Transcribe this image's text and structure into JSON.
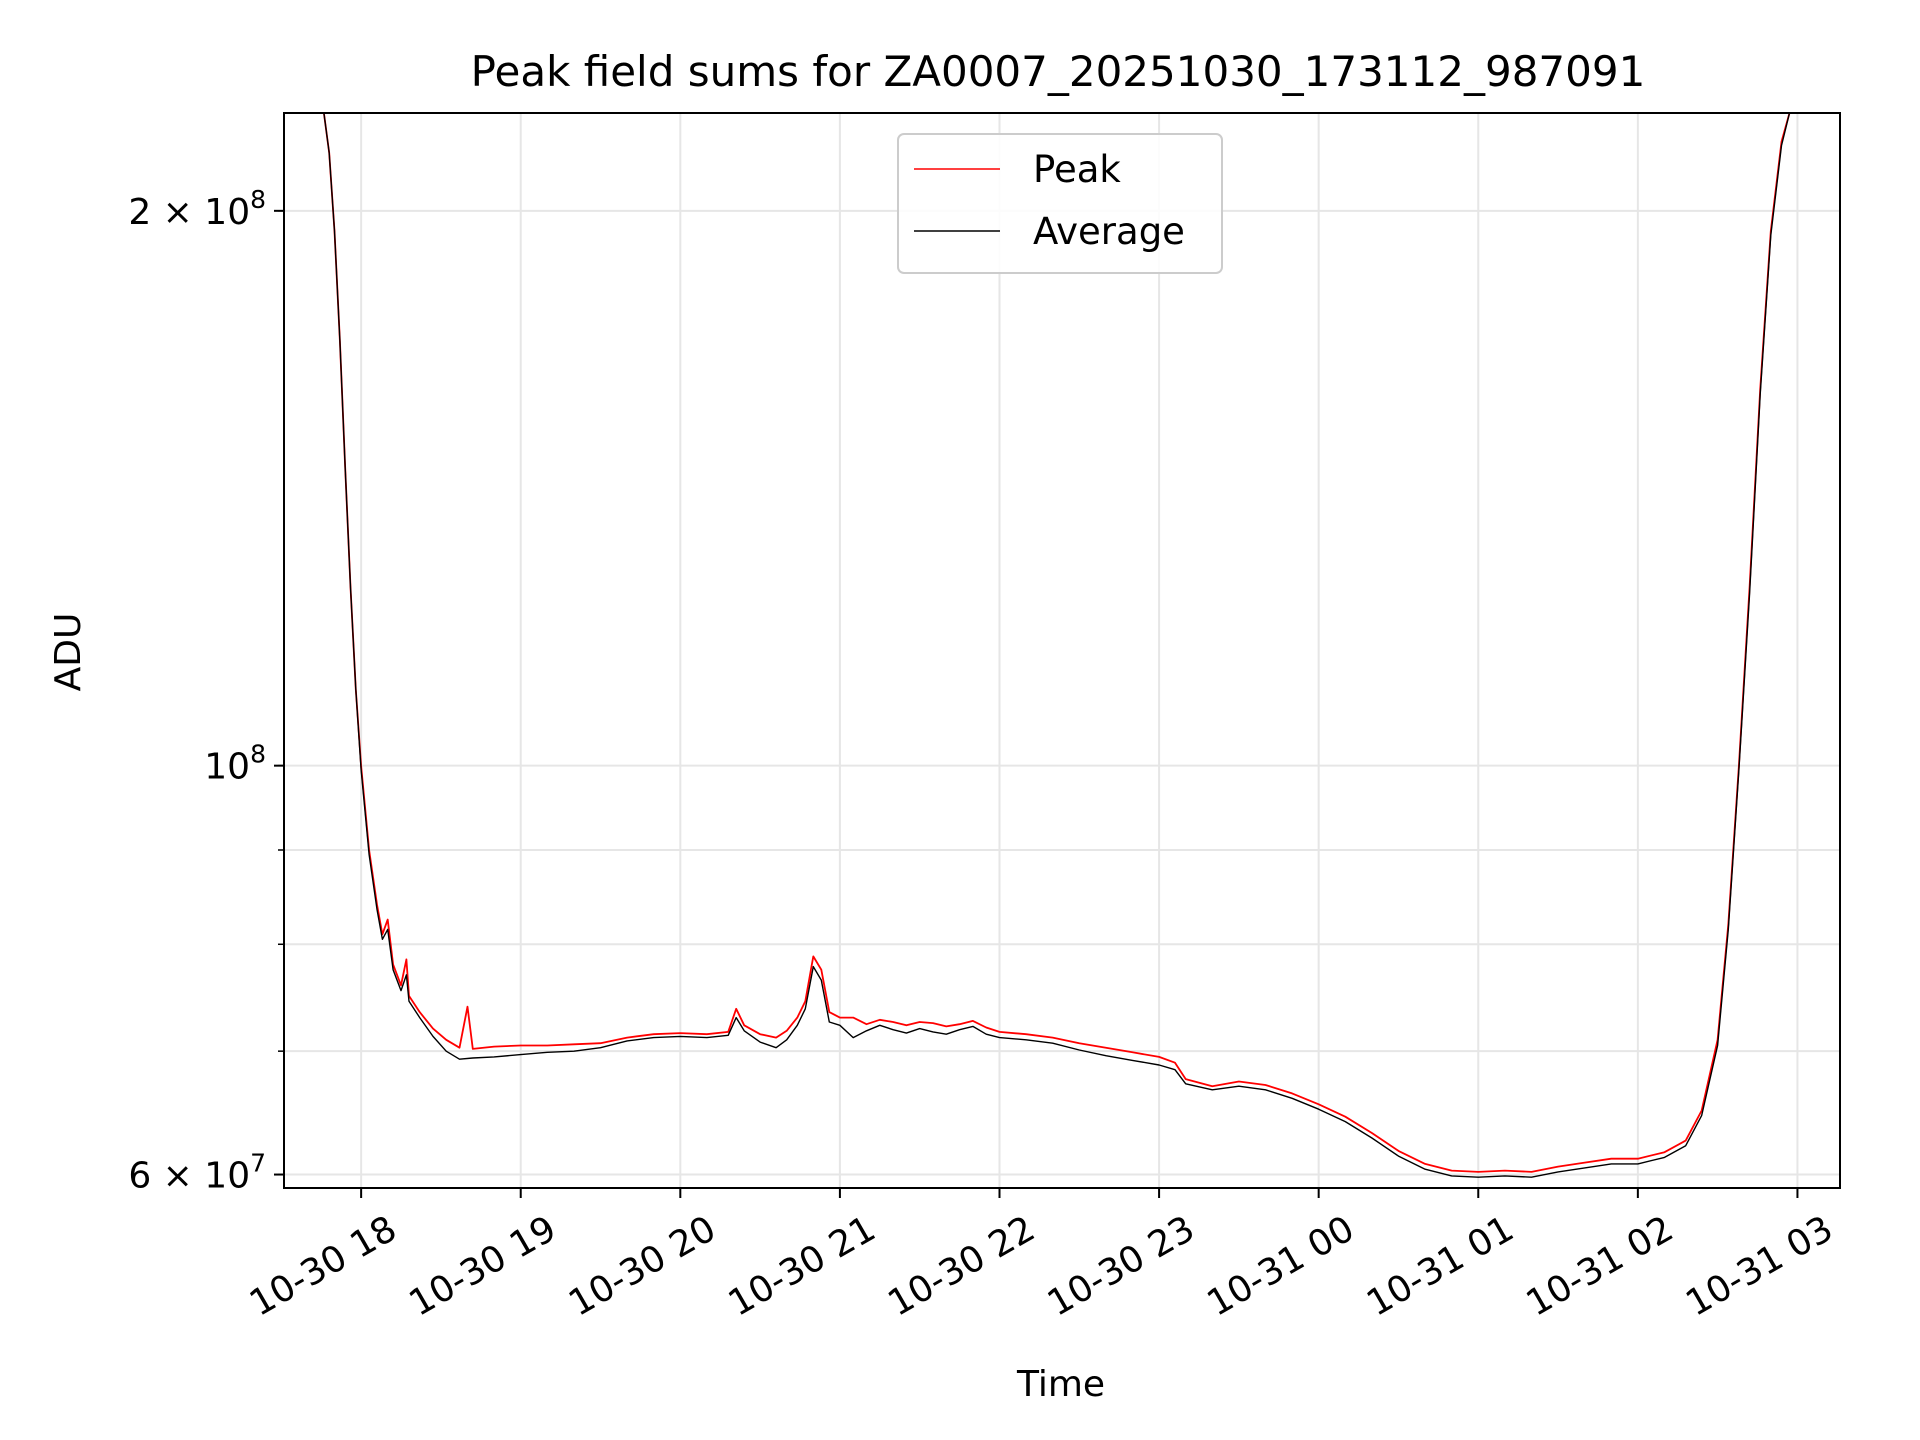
{
  "chart_data": {
    "type": "line",
    "title": "Peak field sums for ZA0007_20251030_173112_987091",
    "xlabel": "Time",
    "ylabel": "ADU",
    "yscale": "log",
    "grid": true,
    "legend_position": "top-center",
    "xlim": [
      "2025-10-30 17:31",
      "2025-10-31 03:16"
    ],
    "ylim": [
      59000000,
      226000000
    ],
    "x_ticks": [
      {
        "value": "2025-10-30 18:00",
        "label": "10-30 18"
      },
      {
        "value": "2025-10-30 19:00",
        "label": "10-30 19"
      },
      {
        "value": "2025-10-30 20:00",
        "label": "10-30 20"
      },
      {
        "value": "2025-10-30 21:00",
        "label": "10-30 21"
      },
      {
        "value": "2025-10-30 22:00",
        "label": "10-30 22"
      },
      {
        "value": "2025-10-30 23:00",
        "label": "10-30 23"
      },
      {
        "value": "2025-10-31 00:00",
        "label": "10-31 00"
      },
      {
        "value": "2025-10-31 01:00",
        "label": "10-31 01"
      },
      {
        "value": "2025-10-31 02:00",
        "label": "10-31 02"
      },
      {
        "value": "2025-10-31 03:00",
        "label": "10-31 03"
      }
    ],
    "y_major_ticks": [
      {
        "value": 60000000,
        "base": "6 × 10",
        "exp": "7"
      },
      {
        "value": 100000000,
        "base": "10",
        "exp": "8"
      },
      {
        "value": 200000000,
        "base": "2 × 10",
        "exp": "8"
      }
    ],
    "y_minor_ticks": [
      60000000,
      70000000,
      80000000,
      90000000,
      100000000,
      200000000
    ],
    "series": [
      {
        "name": "Peak",
        "color": "#ff0000",
        "points": [
          [
            "2025-10-30 17:46",
            226000000
          ],
          [
            "2025-10-30 17:48",
            215000000
          ],
          [
            "2025-10-30 17:50",
            195000000
          ],
          [
            "2025-10-30 17:52",
            170000000
          ],
          [
            "2025-10-30 17:54",
            145000000
          ],
          [
            "2025-10-30 17:56",
            125000000
          ],
          [
            "2025-10-30 17:58",
            110000000
          ],
          [
            "2025-10-30 18:00",
            100000000
          ],
          [
            "2025-10-30 18:03",
            90000000
          ],
          [
            "2025-10-30 18:06",
            84000000
          ],
          [
            "2025-10-30 18:08",
            81000000
          ],
          [
            "2025-10-30 18:10",
            82500000
          ],
          [
            "2025-10-30 18:12",
            78000000
          ],
          [
            "2025-10-30 18:15",
            76000000
          ],
          [
            "2025-10-30 18:17",
            78500000
          ],
          [
            "2025-10-30 18:18",
            75000000
          ],
          [
            "2025-10-30 18:22",
            73500000
          ],
          [
            "2025-10-30 18:27",
            72000000
          ],
          [
            "2025-10-30 18:32",
            71000000
          ],
          [
            "2025-10-30 18:37",
            70300000
          ],
          [
            "2025-10-30 18:40",
            74000000
          ],
          [
            "2025-10-30 18:42",
            70200000
          ],
          [
            "2025-10-30 18:50",
            70400000
          ],
          [
            "2025-10-30 19:00",
            70500000
          ],
          [
            "2025-10-30 19:10",
            70500000
          ],
          [
            "2025-10-30 19:20",
            70600000
          ],
          [
            "2025-10-30 19:30",
            70700000
          ],
          [
            "2025-10-30 19:40",
            71200000
          ],
          [
            "2025-10-30 19:50",
            71500000
          ],
          [
            "2025-10-30 20:00",
            71600000
          ],
          [
            "2025-10-30 20:10",
            71500000
          ],
          [
            "2025-10-30 20:18",
            71700000
          ],
          [
            "2025-10-30 20:21",
            73800000
          ],
          [
            "2025-10-30 20:24",
            72300000
          ],
          [
            "2025-10-30 20:30",
            71500000
          ],
          [
            "2025-10-30 20:36",
            71200000
          ],
          [
            "2025-10-30 20:40",
            71800000
          ],
          [
            "2025-10-30 20:44",
            73000000
          ],
          [
            "2025-10-30 20:47",
            74500000
          ],
          [
            "2025-10-30 20:50",
            78800000
          ],
          [
            "2025-10-30 20:53",
            77500000
          ],
          [
            "2025-10-30 20:56",
            73500000
          ],
          [
            "2025-10-30 21:00",
            73000000
          ],
          [
            "2025-10-30 21:05",
            73000000
          ],
          [
            "2025-10-30 21:10",
            72400000
          ],
          [
            "2025-10-30 21:15",
            72800000
          ],
          [
            "2025-10-30 21:20",
            72600000
          ],
          [
            "2025-10-30 21:25",
            72300000
          ],
          [
            "2025-10-30 21:30",
            72600000
          ],
          [
            "2025-10-30 21:35",
            72500000
          ],
          [
            "2025-10-30 21:40",
            72200000
          ],
          [
            "2025-10-30 21:45",
            72400000
          ],
          [
            "2025-10-30 21:50",
            72700000
          ],
          [
            "2025-10-30 21:55",
            72100000
          ],
          [
            "2025-10-30 22:00",
            71700000
          ],
          [
            "2025-10-30 22:10",
            71500000
          ],
          [
            "2025-10-30 22:20",
            71200000
          ],
          [
            "2025-10-30 22:30",
            70700000
          ],
          [
            "2025-10-30 22:40",
            70300000
          ],
          [
            "2025-10-30 22:50",
            69900000
          ],
          [
            "2025-10-30 23:00",
            69500000
          ],
          [
            "2025-10-30 23:06",
            69000000
          ],
          [
            "2025-10-30 23:10",
            67600000
          ],
          [
            "2025-10-30 23:20",
            67000000
          ],
          [
            "2025-10-30 23:30",
            67400000
          ],
          [
            "2025-10-30 23:40",
            67100000
          ],
          [
            "2025-10-30 23:50",
            66400000
          ],
          [
            "2025-10-31 00:00",
            65500000
          ],
          [
            "2025-10-31 00:10",
            64500000
          ],
          [
            "2025-10-31 00:20",
            63200000
          ],
          [
            "2025-10-31 00:30",
            61800000
          ],
          [
            "2025-10-31 00:40",
            60800000
          ],
          [
            "2025-10-31 00:50",
            60300000
          ],
          [
            "2025-10-31 01:00",
            60200000
          ],
          [
            "2025-10-31 01:10",
            60300000
          ],
          [
            "2025-10-31 01:20",
            60200000
          ],
          [
            "2025-10-31 01:30",
            60600000
          ],
          [
            "2025-10-31 01:40",
            60900000
          ],
          [
            "2025-10-31 01:50",
            61200000
          ],
          [
            "2025-10-31 02:00",
            61200000
          ],
          [
            "2025-10-31 02:10",
            61700000
          ],
          [
            "2025-10-31 02:18",
            62600000
          ],
          [
            "2025-10-31 02:24",
            65000000
          ],
          [
            "2025-10-31 02:30",
            71000000
          ],
          [
            "2025-10-31 02:34",
            82000000
          ],
          [
            "2025-10-31 02:38",
            100000000
          ],
          [
            "2025-10-31 02:42",
            125000000
          ],
          [
            "2025-10-31 02:46",
            160000000
          ],
          [
            "2025-10-31 02:50",
            195000000
          ],
          [
            "2025-10-31 02:54",
            218000000
          ],
          [
            "2025-10-31 02:57",
            226000000
          ]
        ]
      },
      {
        "name": "Average",
        "color": "#000000",
        "points": [
          [
            "2025-10-30 17:46",
            226000000
          ],
          [
            "2025-10-30 17:48",
            215000000
          ],
          [
            "2025-10-30 17:50",
            195000000
          ],
          [
            "2025-10-30 17:52",
            170000000
          ],
          [
            "2025-10-30 17:54",
            145000000
          ],
          [
            "2025-10-30 17:56",
            125000000
          ],
          [
            "2025-10-30 17:58",
            110000000
          ],
          [
            "2025-10-30 18:00",
            99500000
          ],
          [
            "2025-10-30 18:03",
            89500000
          ],
          [
            "2025-10-30 18:06",
            83500000
          ],
          [
            "2025-10-30 18:08",
            80500000
          ],
          [
            "2025-10-30 18:10",
            81500000
          ],
          [
            "2025-10-30 18:12",
            77500000
          ],
          [
            "2025-10-30 18:15",
            75500000
          ],
          [
            "2025-10-30 18:17",
            77000000
          ],
          [
            "2025-10-30 18:18",
            74500000
          ],
          [
            "2025-10-30 18:22",
            73000000
          ],
          [
            "2025-10-30 18:27",
            71300000
          ],
          [
            "2025-10-30 18:32",
            70000000
          ],
          [
            "2025-10-30 18:37",
            69300000
          ],
          [
            "2025-10-30 18:42",
            69400000
          ],
          [
            "2025-10-30 18:50",
            69500000
          ],
          [
            "2025-10-30 19:00",
            69700000
          ],
          [
            "2025-10-30 19:10",
            69900000
          ],
          [
            "2025-10-30 19:20",
            70000000
          ],
          [
            "2025-10-30 19:30",
            70300000
          ],
          [
            "2025-10-30 19:40",
            70900000
          ],
          [
            "2025-10-30 19:50",
            71200000
          ],
          [
            "2025-10-30 20:00",
            71300000
          ],
          [
            "2025-10-30 20:10",
            71200000
          ],
          [
            "2025-10-30 20:18",
            71400000
          ],
          [
            "2025-10-30 20:21",
            73000000
          ],
          [
            "2025-10-30 20:24",
            71800000
          ],
          [
            "2025-10-30 20:30",
            70800000
          ],
          [
            "2025-10-30 20:36",
            70300000
          ],
          [
            "2025-10-30 20:40",
            71000000
          ],
          [
            "2025-10-30 20:44",
            72300000
          ],
          [
            "2025-10-30 20:47",
            73800000
          ],
          [
            "2025-10-30 20:50",
            77800000
          ],
          [
            "2025-10-30 20:53",
            76500000
          ],
          [
            "2025-10-30 20:56",
            72600000
          ],
          [
            "2025-10-30 21:00",
            72300000
          ],
          [
            "2025-10-30 21:05",
            71200000
          ],
          [
            "2025-10-30 21:10",
            71800000
          ],
          [
            "2025-10-30 21:15",
            72300000
          ],
          [
            "2025-10-30 21:20",
            71900000
          ],
          [
            "2025-10-30 21:25",
            71600000
          ],
          [
            "2025-10-30 21:30",
            72000000
          ],
          [
            "2025-10-30 21:35",
            71700000
          ],
          [
            "2025-10-30 21:40",
            71500000
          ],
          [
            "2025-10-30 21:45",
            71900000
          ],
          [
            "2025-10-30 21:50",
            72200000
          ],
          [
            "2025-10-30 21:55",
            71500000
          ],
          [
            "2025-10-30 22:00",
            71200000
          ],
          [
            "2025-10-30 22:10",
            71000000
          ],
          [
            "2025-10-30 22:20",
            70700000
          ],
          [
            "2025-10-30 22:30",
            70100000
          ],
          [
            "2025-10-30 22:40",
            69600000
          ],
          [
            "2025-10-30 22:50",
            69200000
          ],
          [
            "2025-10-30 23:00",
            68800000
          ],
          [
            "2025-10-30 23:06",
            68400000
          ],
          [
            "2025-10-30 23:10",
            67200000
          ],
          [
            "2025-10-30 23:20",
            66700000
          ],
          [
            "2025-10-30 23:30",
            67000000
          ],
          [
            "2025-10-30 23:40",
            66700000
          ],
          [
            "2025-10-30 23:50",
            66000000
          ],
          [
            "2025-10-31 00:00",
            65100000
          ],
          [
            "2025-10-31 00:10",
            64100000
          ],
          [
            "2025-10-31 00:20",
            62800000
          ],
          [
            "2025-10-31 00:30",
            61400000
          ],
          [
            "2025-10-31 00:40",
            60400000
          ],
          [
            "2025-10-31 00:50",
            59900000
          ],
          [
            "2025-10-31 01:00",
            59800000
          ],
          [
            "2025-10-31 01:10",
            59900000
          ],
          [
            "2025-10-31 01:20",
            59800000
          ],
          [
            "2025-10-31 01:30",
            60200000
          ],
          [
            "2025-10-31 01:40",
            60500000
          ],
          [
            "2025-10-31 01:50",
            60800000
          ],
          [
            "2025-10-31 02:00",
            60800000
          ],
          [
            "2025-10-31 02:10",
            61300000
          ],
          [
            "2025-10-31 02:18",
            62200000
          ],
          [
            "2025-10-31 02:24",
            64600000
          ],
          [
            "2025-10-31 02:30",
            70500000
          ],
          [
            "2025-10-31 02:34",
            81500000
          ],
          [
            "2025-10-31 02:38",
            99500000
          ],
          [
            "2025-10-31 02:42",
            124000000
          ],
          [
            "2025-10-31 02:46",
            159000000
          ],
          [
            "2025-10-31 02:50",
            194000000
          ],
          [
            "2025-10-31 02:54",
            217000000
          ],
          [
            "2025-10-31 02:57",
            226000000
          ]
        ]
      }
    ]
  }
}
